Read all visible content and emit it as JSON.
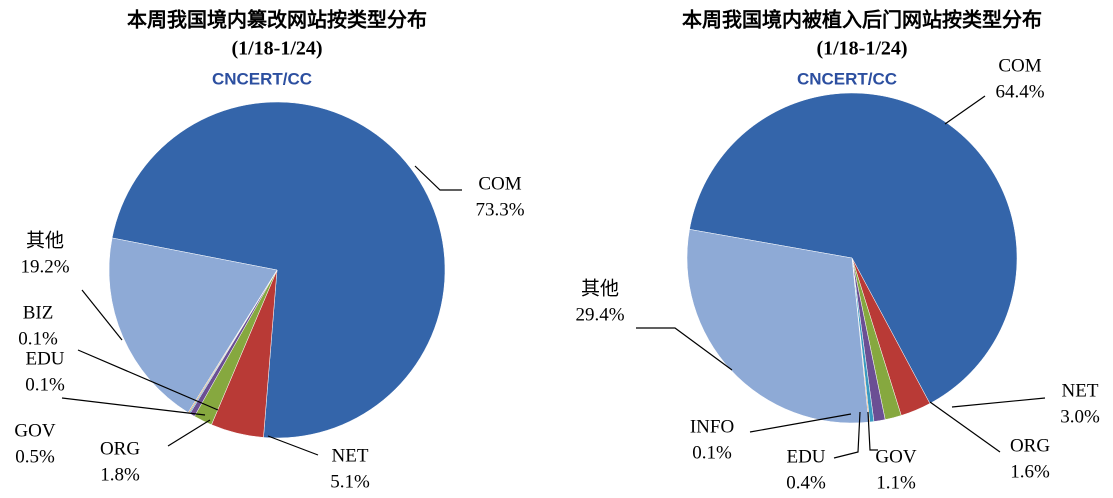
{
  "chart_data": [
    {
      "type": "pie",
      "title": "本周我国境内篡改网站按类型分布",
      "subtitle": "(1/18-1/24)",
      "logo": "CNCERT/CC",
      "categories": [
        "COM",
        "NET",
        "ORG",
        "GOV",
        "EDU",
        "BIZ",
        "其他"
      ],
      "values": [
        73.3,
        5.1,
        1.8,
        0.5,
        0.1,
        0.1,
        19.2
      ],
      "value_labels": [
        "73.3%",
        "5.1%",
        "1.8%",
        "0.5%",
        "0.1%",
        "0.1%",
        "19.2%"
      ],
      "colors": [
        "#3465aa",
        "#b93a36",
        "#86a83f",
        "#6b4f94",
        "#3a9ac0",
        "#e08a3a",
        "#8eaad6"
      ]
    },
    {
      "type": "pie",
      "title": "本周我国境内被植入后门网站按类型分布",
      "subtitle": "(1/18-1/24)",
      "logo": "CNCERT/CC",
      "categories": [
        "COM",
        "NET",
        "ORG",
        "GOV",
        "EDU",
        "INFO",
        "其他"
      ],
      "values": [
        64.4,
        3.0,
        1.6,
        1.1,
        0.4,
        0.1,
        29.4
      ],
      "value_labels": [
        "64.4%",
        "3.0%",
        "1.6%",
        "1.1%",
        "0.4%",
        "0.1%",
        "29.4%"
      ],
      "colors": [
        "#3465aa",
        "#b93a36",
        "#86a83f",
        "#6b4f94",
        "#3a9ac0",
        "#e08a3a",
        "#8eaad6"
      ]
    }
  ]
}
